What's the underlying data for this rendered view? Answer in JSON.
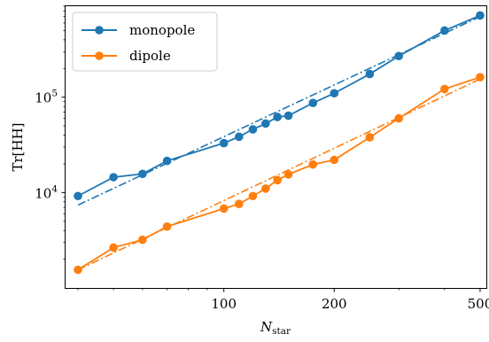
{
  "chart_data": {
    "type": "line",
    "xscale": "log",
    "yscale": "log",
    "xlim": [
      37,
      520
    ],
    "ylim": [
      1000,
      900000
    ],
    "xticks": [
      {
        "value": 100,
        "label": "100"
      },
      {
        "value": 200,
        "label": "200"
      },
      {
        "value": 500,
        "label": "500"
      }
    ],
    "yticks": [
      {
        "value": 10000,
        "base": "10",
        "exp": "4"
      },
      {
        "value": 100000,
        "base": "10",
        "exp": "5"
      }
    ],
    "xlabel": {
      "main": "N",
      "sub": "star"
    },
    "ylabel": "Tr[HH]",
    "legend": {
      "location": "upper-left"
    },
    "series": [
      {
        "name": "monopole",
        "color": "#1f77b4",
        "x": [
          40,
          50,
          60,
          70,
          100,
          110,
          120,
          130,
          140,
          150,
          175,
          200,
          250,
          300,
          400,
          500
        ],
        "y": [
          9200,
          14500,
          15700,
          21500,
          33000,
          38500,
          46000,
          53000,
          62000,
          64000,
          87000,
          110000,
          175000,
          270000,
          500000,
          720000
        ],
        "fit_x": [
          40,
          500
        ],
        "fit_y": [
          7400,
          700000
        ]
      },
      {
        "name": "dipole",
        "color": "#ff7f0e",
        "x": [
          40,
          50,
          60,
          70,
          100,
          110,
          120,
          130,
          140,
          150,
          175,
          200,
          250,
          300,
          400,
          500
        ],
        "y": [
          1550,
          2650,
          3200,
          4400,
          6800,
          7600,
          9200,
          11000,
          13500,
          15500,
          19700,
          22000,
          38000,
          60000,
          122000,
          162000
        ],
        "fit_x": [
          40,
          500
        ],
        "fit_y": [
          1550,
          155000
        ]
      }
    ]
  }
}
